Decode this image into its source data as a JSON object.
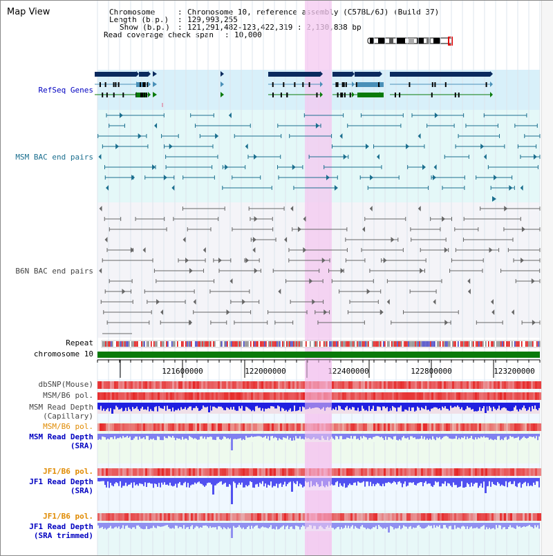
{
  "page_title": "Map View",
  "info": {
    "chromosome_label": "Chromosome",
    "chromosome_value": "Chromosome 10, reference assembly (C57BL/6J) (Build 37)",
    "length_label": "Length (b.p.)",
    "length_value": "129,993,255",
    "show_label": "Show (b.p.)",
    "show_value": "121,291,482-123,422,319 : 2,130,838 bp",
    "coverage_label": "Read coverage check span",
    "coverage_value": "10,000"
  },
  "tracks": {
    "refseq": "RefSeq Genes",
    "msm_bac": "MSM BAC end pairs",
    "b6n_bac": "B6N BAC end pairs",
    "repeat": "Repeat",
    "chromosome": "chromosome 10",
    "dbsnp": "dbSNP(Mouse)",
    "msm_b6_pol_1": "MSM/B6 pol.",
    "msm_read_depth_cap_1": "MSM Read Depth",
    "msm_read_depth_cap_2": "(Capillary)",
    "msm_b6_pol_2": "MSM/B6 pol.",
    "msm_read_depth_sra_1": "MSM Read Depth",
    "msm_read_depth_sra_2": "(SRA)",
    "jf1_b6_pol_1": "JF1/B6 pol.",
    "jf1_read_depth_sra_1": "JF1 Read Depth",
    "jf1_read_depth_sra_2": "(SRA)",
    "jf1_b6_pol_2": "JF1/B6 pol.",
    "jf1_read_depth_trim_1": "JF1 Read Depth",
    "jf1_read_depth_trim_2": "(SRA trimmed)"
  },
  "axis": {
    "ticks": [
      "121600000",
      "122000000",
      "122400000",
      "122800000",
      "123200000"
    ]
  },
  "colors": {
    "gene_dark": "#0a2a5e",
    "gene_mid": "#4a90b8",
    "gene_green": "#0a7a0a",
    "msm_bac": "#1a6e8e",
    "b6n_bac": "#666666",
    "highlight": "#f4c8f0",
    "refseq_bg": "#d8f0fa",
    "msm_bg": "#e4f8f8",
    "b6n_bg": "#f4f4f8",
    "chromosome": "#0a7a0a",
    "msm_label": "#0a5a8a",
    "pol_label": "#e08a00",
    "sra_label": "#0000c0"
  }
}
